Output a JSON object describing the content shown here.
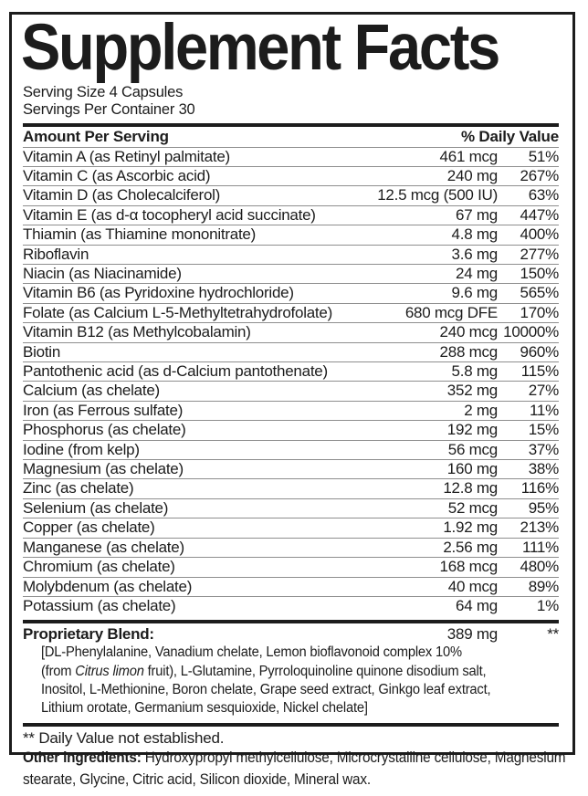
{
  "colors": {
    "ink": "#1c1c1c",
    "divider": "#8e8e8e",
    "background": "#ffffff"
  },
  "header": {
    "title": "Supplement Facts",
    "serving_size": "Serving Size 4 Capsules",
    "servings_per_container": "Servings Per Container 30"
  },
  "table": {
    "amount_header": "Amount Per Serving",
    "dv_header": "% Daily Value",
    "rows": [
      {
        "name": "Vitamin A (as Retinyl palmitate)",
        "amount": "461 mcg",
        "dv": "51%"
      },
      {
        "name": "Vitamin C (as Ascorbic acid)",
        "amount": "240 mg",
        "dv": "267%"
      },
      {
        "name": "Vitamin D (as Cholecalciferol)",
        "amount": "12.5 mcg (500 IU)",
        "dv": "63%"
      },
      {
        "name": "Vitamin E (as d-α tocopheryl acid succinate)",
        "amount": "67 mg",
        "dv": "447%"
      },
      {
        "name": "Thiamin (as Thiamine mononitrate)",
        "amount": "4.8 mg",
        "dv": "400%"
      },
      {
        "name": "Riboflavin",
        "amount": "3.6 mg",
        "dv": "277%"
      },
      {
        "name": "Niacin (as Niacinamide)",
        "amount": "24 mg",
        "dv": "150%"
      },
      {
        "name": "Vitamin B6 (as Pyridoxine hydrochloride)",
        "amount": "9.6 mg",
        "dv": "565%"
      },
      {
        "name": "Folate (as Calcium L-5-Methyltetrahydrofolate)",
        "amount": "680 mcg DFE",
        "dv": "170%"
      },
      {
        "name": "Vitamin B12 (as Methylcobalamin)",
        "amount": "240 mcg",
        "dv": "10000%"
      },
      {
        "name": "Biotin",
        "amount": "288 mcg",
        "dv": "960%"
      },
      {
        "name": "Pantothenic acid (as d-Calcium pantothenate)",
        "amount": "5.8 mg",
        "dv": "115%"
      },
      {
        "name": "Calcium (as chelate)",
        "amount": "352 mg",
        "dv": "27%"
      },
      {
        "name": "Iron (as Ferrous sulfate)",
        "amount": "2 mg",
        "dv": "11%"
      },
      {
        "name": "Phosphorus (as chelate)",
        "amount": "192 mg",
        "dv": "15%"
      },
      {
        "name": "Iodine (from kelp)",
        "amount": "56 mcg",
        "dv": "37%"
      },
      {
        "name": "Magnesium (as chelate)",
        "amount": "160 mg",
        "dv": "38%"
      },
      {
        "name": "Zinc (as chelate)",
        "amount": "12.8 mg",
        "dv": "116%"
      },
      {
        "name": "Selenium (as chelate)",
        "amount": "52 mcg",
        "dv": "95%"
      },
      {
        "name": "Copper (as chelate)",
        "amount": "1.92 mg",
        "dv": "213%"
      },
      {
        "name": "Manganese (as chelate)",
        "amount": "2.56 mg",
        "dv": "111%"
      },
      {
        "name": "Chromium (as chelate)",
        "amount": "168 mcg",
        "dv": "480%"
      },
      {
        "name": "Molybdenum (as chelate)",
        "amount": "40 mcg",
        "dv": "89%"
      },
      {
        "name": "Potassium (as chelate)",
        "amount": "64 mg",
        "dv": "1%"
      }
    ]
  },
  "proprietary_blend": {
    "label": "Proprietary Blend:",
    "amount": "389 mg",
    "dv": "**",
    "description_lines": [
      [
        {
          "t": "[DL-Phenylalanine, Vanadium chelate, Lemon bioflavonoid complex 10%"
        }
      ],
      [
        {
          "t": "(from "
        },
        {
          "t": "Citrus limon",
          "i": true
        },
        {
          "t": " fruit), L-Glutamine, Pyrroloquinoline quinone disodium salt,"
        }
      ],
      [
        {
          "t": "Inositol, L-Methionine, Boron chelate, Grape seed extract, Ginkgo leaf extract,"
        }
      ],
      [
        {
          "t": "Lithium orotate, Germanium sesquioxide, Nickel chelate]"
        }
      ]
    ]
  },
  "footnote": "** Daily Value not established.",
  "other_ingredients": {
    "label": "Other ingredients:",
    "text": " Hydroxypropyl methylcellulose, Microcrystalline cellulose, Magnesium stearate, Glycine, Citric acid, Silicon dioxide, Mineral wax."
  }
}
